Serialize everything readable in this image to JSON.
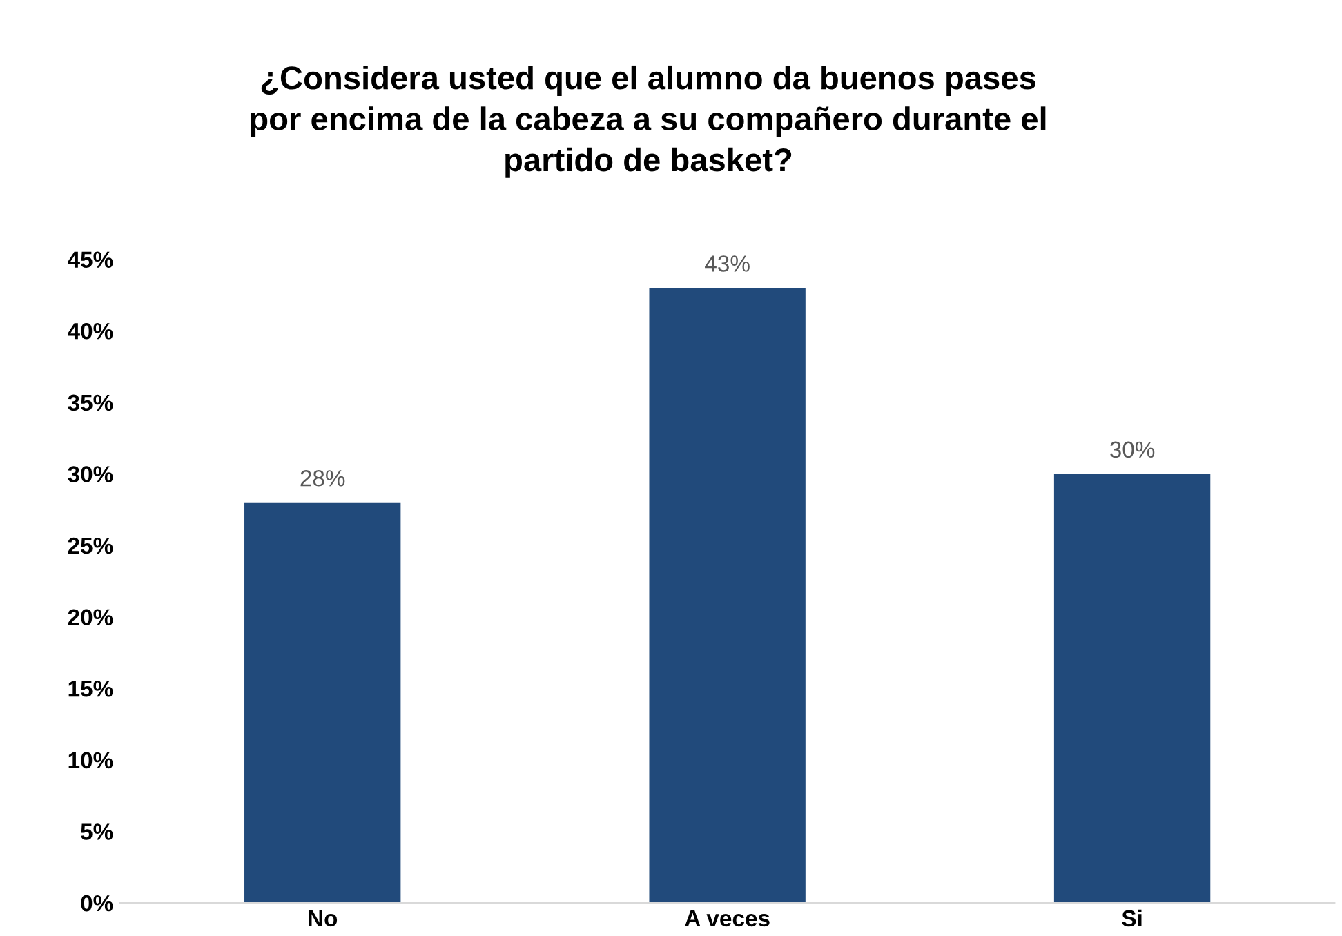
{
  "chart_data": {
    "type": "bar",
    "title": "¿Considera usted que el alumno da buenos pases\npor encima de la cabeza a su compañero durante el\npartido de basket?",
    "categories": [
      "No",
      "A veces",
      "Si"
    ],
    "values": [
      28,
      43,
      30
    ],
    "value_labels": [
      "28%",
      "43%",
      "30%"
    ],
    "color": "#214a7b",
    "ylim": [
      0,
      45
    ],
    "yticks": [
      {
        "value": 0,
        "label": "0%"
      },
      {
        "value": 5,
        "label": "5%"
      },
      {
        "value": 10,
        "label": "10%"
      },
      {
        "value": 15,
        "label": "15%"
      },
      {
        "value": 20,
        "label": "20%"
      },
      {
        "value": 25,
        "label": "25%"
      },
      {
        "value": 30,
        "label": "30%"
      },
      {
        "value": 35,
        "label": "35%"
      },
      {
        "value": 40,
        "label": "40%"
      },
      {
        "value": 45,
        "label": "45%"
      }
    ],
    "grid": false
  }
}
